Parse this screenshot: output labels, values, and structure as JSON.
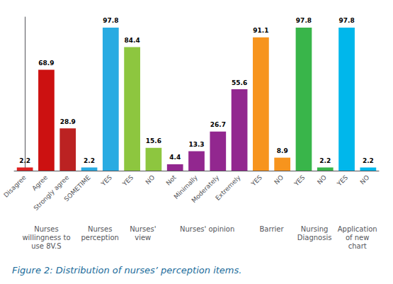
{
  "chart_data": {
    "type": "bar",
    "title": "Figure 2: Distribution of nurses’ perception items.",
    "groups": [
      {
        "label": "Nurses\nwillingness to\nuse 8V.S",
        "categories": [
          "Disagree",
          "Agree",
          "Strongly agree"
        ],
        "values": [
          2.2,
          68.9,
          28.9
        ],
        "colors": [
          "#dd2222",
          "#cc1111",
          "#bb2222"
        ]
      },
      {
        "label": "Nurses\nperception",
        "categories": [
          "SOMETIME",
          "YES"
        ],
        "values": [
          2.2,
          97.8
        ],
        "colors": [
          "#29abe2",
          "#29abe2"
        ]
      },
      {
        "label": "Nurses'\nview",
        "categories": [
          "YES",
          "NO"
        ],
        "values": [
          84.4,
          15.6
        ],
        "colors": [
          "#8dc63f",
          "#8dc63f"
        ]
      },
      {
        "label": "Nurses' opinion",
        "categories": [
          "Not",
          "Minimally",
          "Moderately",
          "Extremely"
        ],
        "values": [
          4.4,
          13.3,
          26.7,
          55.6
        ],
        "colors": [
          "#92278f",
          "#92278f",
          "#92278f",
          "#92278f"
        ]
      },
      {
        "label": "Barrier",
        "categories": [
          "YES",
          "NO"
        ],
        "values": [
          91.1,
          8.9
        ],
        "colors": [
          "#f7941d",
          "#f7941d"
        ]
      },
      {
        "label": "Nursing\nDiagnosis",
        "categories": [
          "YES",
          "NO"
        ],
        "values": [
          97.8,
          2.2
        ],
        "colors": [
          "#39b54a",
          "#39b54a"
        ]
      },
      {
        "label": "Application\nof new\nchart",
        "categories": [
          "YES",
          "NO"
        ],
        "values": [
          97.8,
          2.2
        ],
        "colors": [
          "#00b7eb",
          "#00b7eb"
        ]
      }
    ],
    "ylim": [
      0,
      105
    ],
    "data_labels": true,
    "tick_labels": "x",
    "grid": false
  }
}
